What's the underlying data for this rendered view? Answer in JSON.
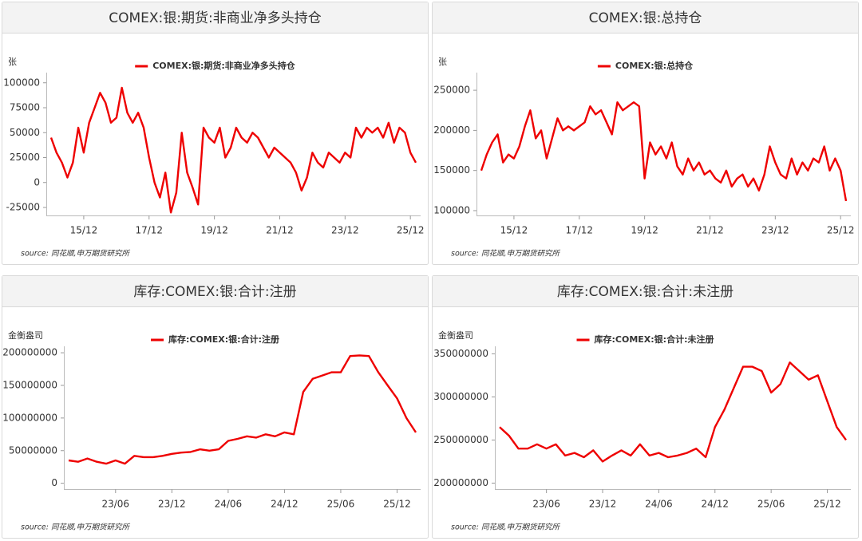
{
  "chart_data": [
    {
      "type": "line",
      "title": "COMEX:银:期货:非商业净多头持仓",
      "y_unit": "张",
      "source": "source: 同花顺,申万期货研究所",
      "x": [
        "14/12",
        "15/02",
        "15/04",
        "15/06",
        "15/08",
        "15/10",
        "15/12",
        "16/02",
        "16/04",
        "16/06",
        "16/08",
        "16/10",
        "16/12",
        "17/02",
        "17/04",
        "17/06",
        "17/08",
        "17/10",
        "17/12",
        "18/02",
        "18/04",
        "18/06",
        "18/08",
        "18/10",
        "18/12",
        "19/02",
        "19/04",
        "19/06",
        "19/08",
        "19/10",
        "19/12",
        "20/02",
        "20/04",
        "20/06",
        "20/08",
        "20/10",
        "20/12",
        "21/02",
        "21/04",
        "21/06",
        "21/08",
        "21/10",
        "21/12",
        "22/02",
        "22/04",
        "22/06",
        "22/08",
        "22/10",
        "22/12",
        "23/02",
        "23/04",
        "23/06",
        "23/08",
        "23/10",
        "23/12",
        "24/02",
        "24/04",
        "24/06",
        "24/08",
        "24/10",
        "24/12",
        "25/02",
        "25/04",
        "25/06",
        "25/08",
        "25/10",
        "25/12",
        "26/02"
      ],
      "series": [
        {
          "name": "COMEX:银:期货:非商业净多头持仓",
          "color": "#ee0000",
          "values": [
            45000,
            30000,
            20000,
            5000,
            20000,
            55000,
            30000,
            60000,
            75000,
            90000,
            80000,
            60000,
            65000,
            95000,
            70000,
            60000,
            70000,
            55000,
            25000,
            0,
            -15000,
            10000,
            -30000,
            -10000,
            50000,
            10000,
            -5000,
            -22000,
            55000,
            45000,
            40000,
            55000,
            25000,
            35000,
            55000,
            45000,
            40000,
            50000,
            45000,
            35000,
            25000,
            35000,
            30000,
            25000,
            20000,
            10000,
            -8000,
            5000,
            30000,
            20000,
            15000,
            30000,
            25000,
            20000,
            30000,
            25000,
            55000,
            45000,
            55000,
            50000,
            55000,
            45000,
            60000,
            40000,
            55000,
            50000,
            30000,
            20000
          ]
        }
      ],
      "ylim": [
        -33000,
        107000
      ],
      "yticks": [
        -25000,
        0,
        25000,
        50000,
        75000,
        100000
      ],
      "xticks": [
        "15/12",
        "17/12",
        "19/12",
        "21/12",
        "23/12",
        "25/12"
      ]
    },
    {
      "type": "line",
      "title": "COMEX:银:总持仓",
      "y_unit": "张",
      "source": "source: 同花顺,申万期货研究所",
      "x": [
        "14/12",
        "15/02",
        "15/04",
        "15/06",
        "15/08",
        "15/10",
        "15/12",
        "16/02",
        "16/04",
        "16/06",
        "16/08",
        "16/10",
        "16/12",
        "17/02",
        "17/04",
        "17/06",
        "17/08",
        "17/10",
        "17/12",
        "18/02",
        "18/04",
        "18/06",
        "18/08",
        "18/10",
        "18/12",
        "19/02",
        "19/04",
        "19/06",
        "19/08",
        "19/10",
        "19/12",
        "20/02",
        "20/04",
        "20/06",
        "20/08",
        "20/10",
        "20/12",
        "21/02",
        "21/04",
        "21/06",
        "21/08",
        "21/10",
        "21/12",
        "22/02",
        "22/04",
        "22/06",
        "22/08",
        "22/10",
        "22/12",
        "23/02",
        "23/04",
        "23/06",
        "23/08",
        "23/10",
        "23/12",
        "24/02",
        "24/04",
        "24/06",
        "24/08",
        "24/10",
        "24/12",
        "25/02",
        "25/04",
        "25/06",
        "25/08",
        "25/10",
        "25/12",
        "26/02"
      ],
      "series": [
        {
          "name": "COMEX:银:总持仓",
          "color": "#ee0000",
          "values": [
            150000,
            170000,
            185000,
            195000,
            160000,
            170000,
            165000,
            180000,
            205000,
            225000,
            190000,
            200000,
            165000,
            190000,
            215000,
            200000,
            205000,
            200000,
            205000,
            210000,
            230000,
            220000,
            225000,
            210000,
            195000,
            235000,
            225000,
            230000,
            235000,
            230000,
            140000,
            185000,
            170000,
            180000,
            165000,
            185000,
            155000,
            145000,
            165000,
            150000,
            160000,
            145000,
            150000,
            140000,
            135000,
            150000,
            130000,
            140000,
            145000,
            130000,
            140000,
            125000,
            145000,
            180000,
            160000,
            145000,
            140000,
            165000,
            145000,
            160000,
            150000,
            165000,
            160000,
            180000,
            150000,
            165000,
            150000,
            112000
          ]
        }
      ],
      "ylim": [
        94000,
        268000
      ],
      "yticks": [
        100000,
        150000,
        200000,
        250000
      ],
      "xticks": [
        "15/12",
        "17/12",
        "19/12",
        "21/12",
        "23/12",
        "25/12"
      ]
    },
    {
      "type": "line",
      "title": "库存:COMEX:银:合计:注册",
      "y_unit": "金衡盎司",
      "source": "source: 同花顺,申万期货研究所",
      "x": [
        "23/01",
        "23/02",
        "23/03",
        "23/04",
        "23/05",
        "23/06",
        "23/07",
        "23/08",
        "23/09",
        "23/10",
        "23/11",
        "23/12",
        "24/01",
        "24/02",
        "24/03",
        "24/04",
        "24/05",
        "24/06",
        "24/07",
        "24/08",
        "24/09",
        "24/10",
        "24/11",
        "24/12",
        "25/01",
        "25/02",
        "25/03",
        "25/04",
        "25/05",
        "25/06",
        "25/07",
        "25/08",
        "25/09",
        "25/10",
        "25/11",
        "25/12",
        "26/01",
        "26/02"
      ],
      "series": [
        {
          "name": "库存:COMEX:银:合计:注册",
          "color": "#ee0000",
          "values": [
            35000000,
            33000000,
            38000000,
            33000000,
            30000000,
            35000000,
            30000000,
            42000000,
            40000000,
            40000000,
            42000000,
            45000000,
            47000000,
            48000000,
            52000000,
            50000000,
            52000000,
            65000000,
            68000000,
            72000000,
            70000000,
            75000000,
            72000000,
            78000000,
            75000000,
            140000000,
            160000000,
            165000000,
            170000000,
            170000000,
            195000000,
            196000000,
            195000000,
            170000000,
            150000000,
            130000000,
            100000000,
            78000000
          ]
        }
      ],
      "ylim": [
        -9000000,
        205000000
      ],
      "yticks": [
        0,
        50000000,
        100000000,
        150000000,
        200000000
      ],
      "xticks": [
        "23/06",
        "23/12",
        "24/06",
        "24/12",
        "25/06",
        "25/12"
      ]
    },
    {
      "type": "line",
      "title": "库存:COMEX:银:合计:未注册",
      "y_unit": "金衡盎司",
      "source": "source: 同花顺,申万期货研究所",
      "x": [
        "23/01",
        "23/02",
        "23/03",
        "23/04",
        "23/05",
        "23/06",
        "23/07",
        "23/08",
        "23/09",
        "23/10",
        "23/11",
        "23/12",
        "24/01",
        "24/02",
        "24/03",
        "24/04",
        "24/05",
        "24/06",
        "24/07",
        "24/08",
        "24/09",
        "24/10",
        "24/11",
        "24/12",
        "25/01",
        "25/02",
        "25/03",
        "25/04",
        "25/05",
        "25/06",
        "25/07",
        "25/08",
        "25/09",
        "25/10",
        "25/11",
        "25/12",
        "26/01",
        "26/02"
      ],
      "series": [
        {
          "name": "库存:COMEX:银:合计:未注册",
          "color": "#ee0000",
          "values": [
            265000000,
            255000000,
            240000000,
            240000000,
            245000000,
            240000000,
            245000000,
            232000000,
            235000000,
            230000000,
            238000000,
            225000000,
            232000000,
            238000000,
            232000000,
            245000000,
            232000000,
            235000000,
            230000000,
            232000000,
            235000000,
            240000000,
            230000000,
            265000000,
            285000000,
            310000000,
            335000000,
            335000000,
            330000000,
            305000000,
            315000000,
            340000000,
            330000000,
            320000000,
            325000000,
            295000000,
            265000000,
            250000000
          ]
        }
      ],
      "ylim": [
        193000000,
        355000000
      ],
      "yticks": [
        200000000,
        250000000,
        300000000,
        350000000
      ],
      "xticks": [
        "23/06",
        "23/12",
        "24/06",
        "24/12",
        "25/06",
        "25/12"
      ]
    }
  ]
}
